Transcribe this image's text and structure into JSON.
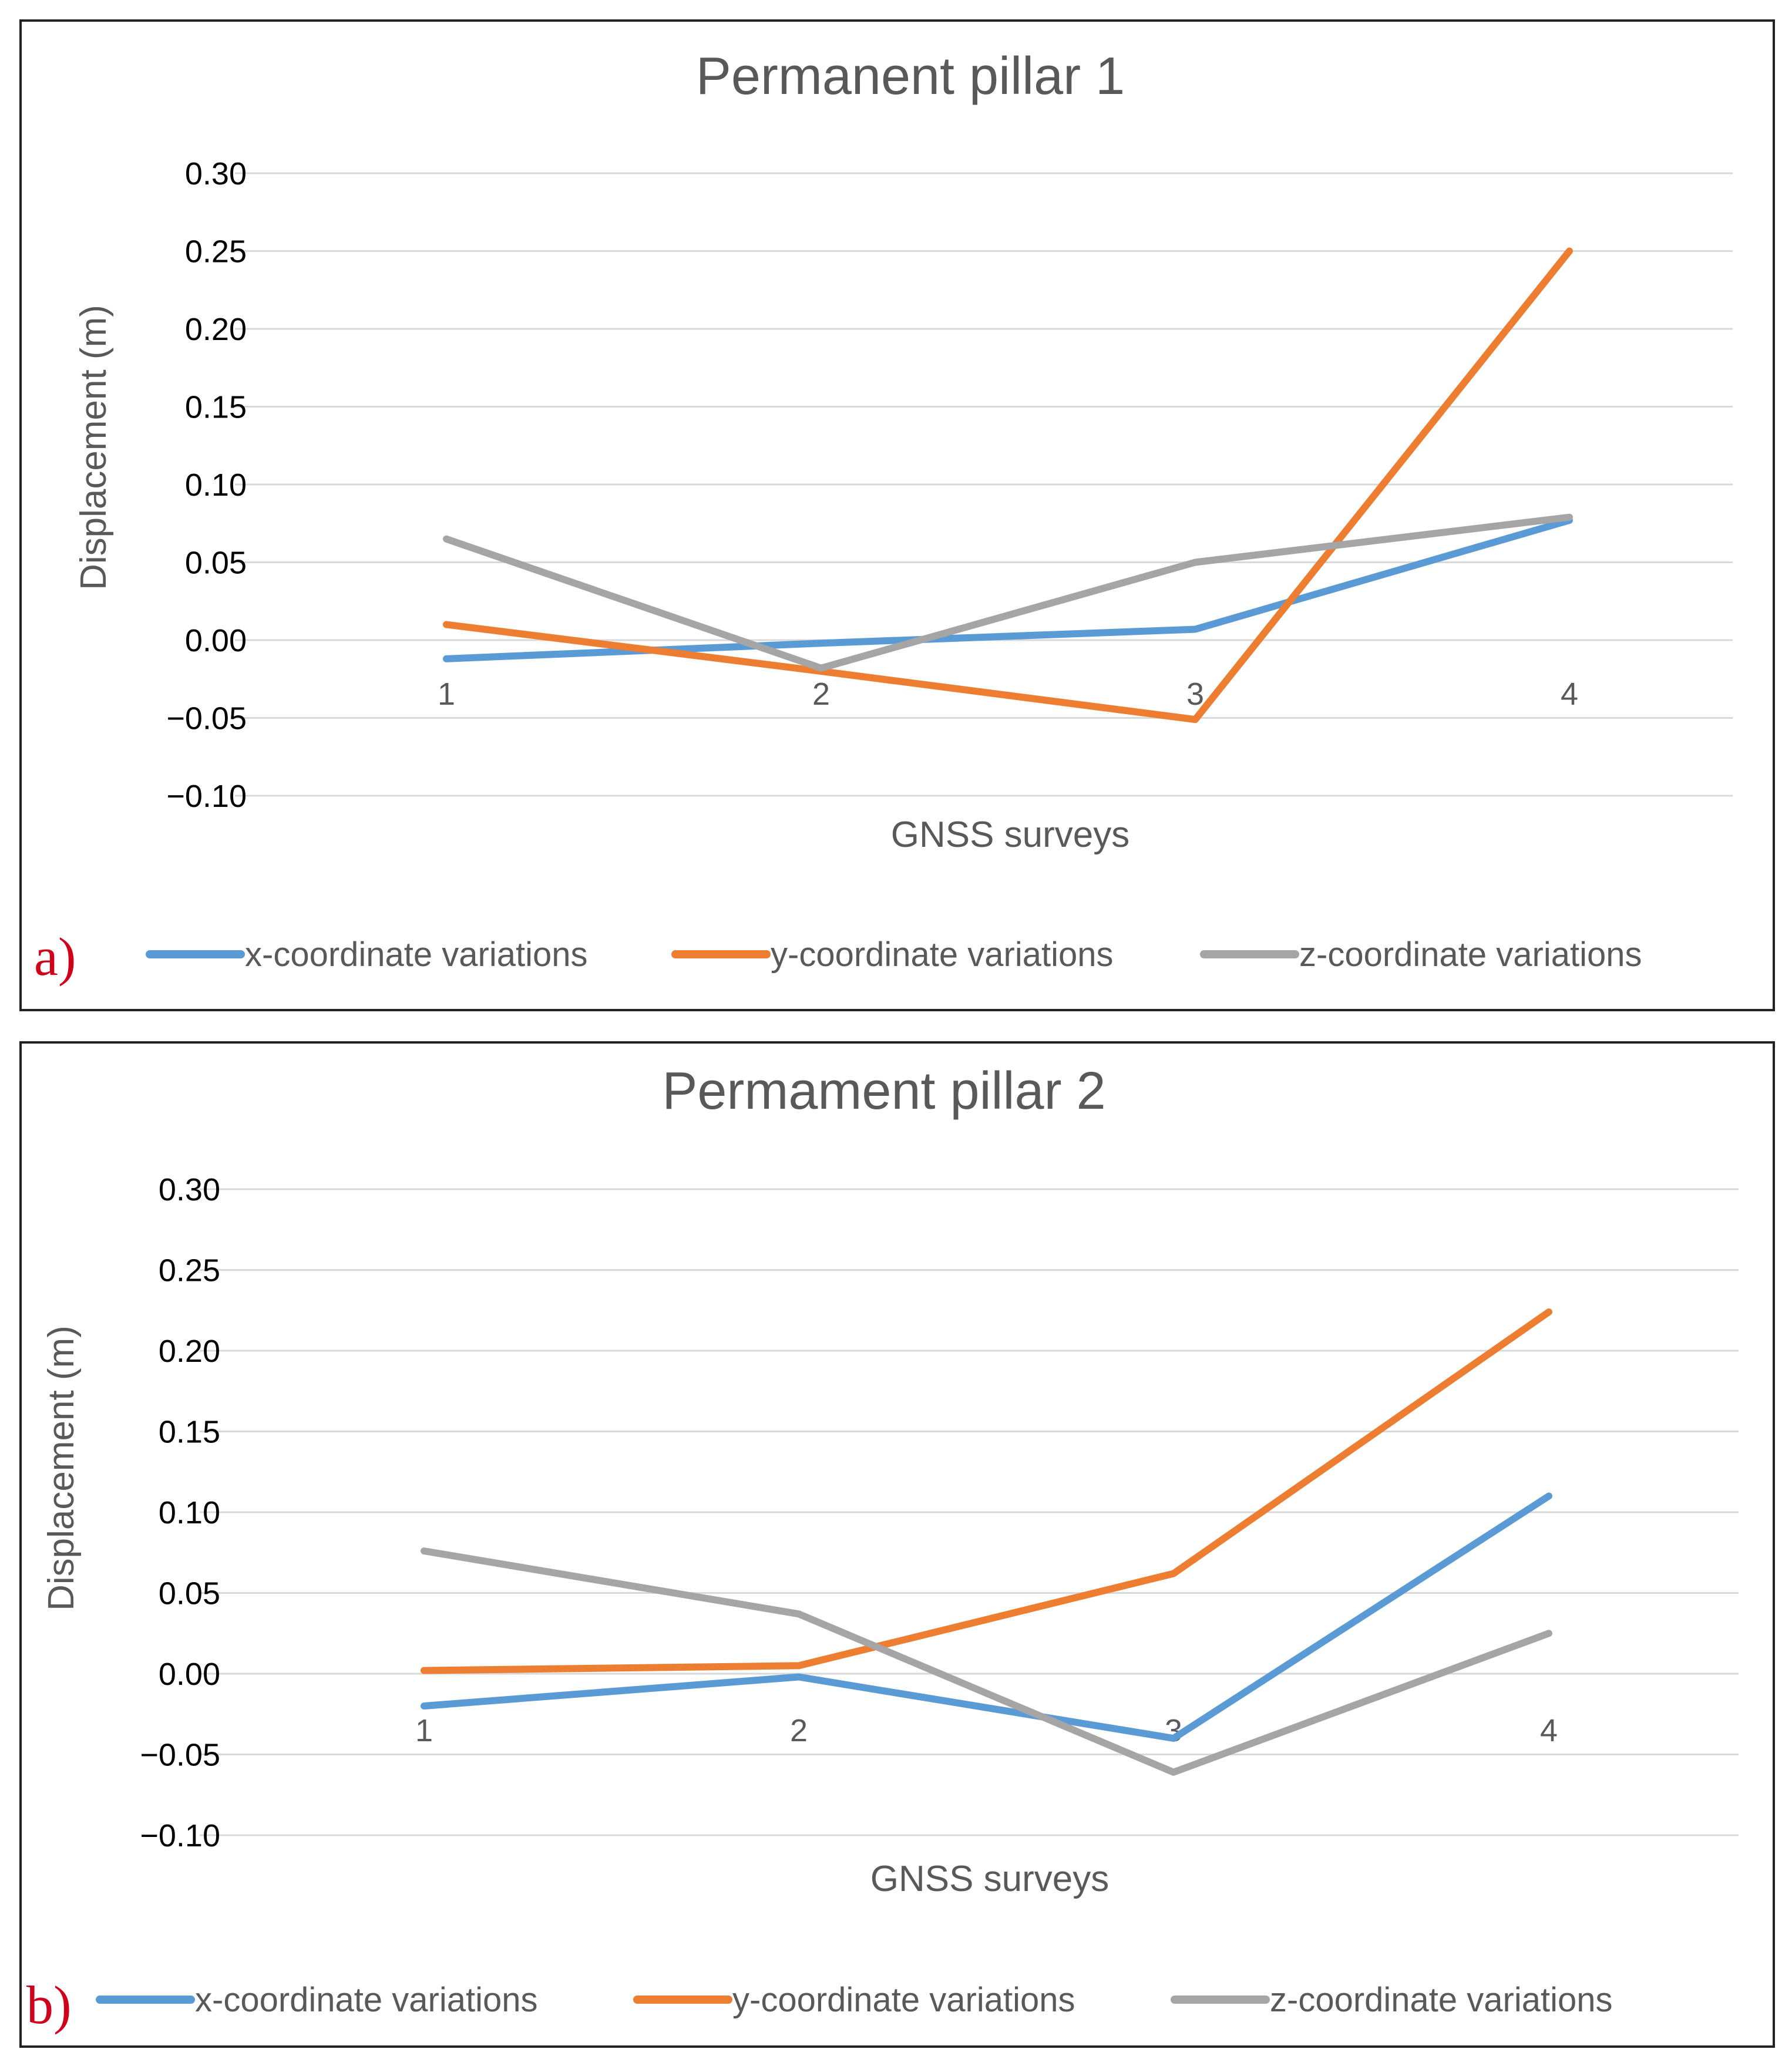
{
  "chart_data": [
    {
      "type": "line",
      "panel_label": "a)",
      "title": "Permanent pillar 1",
      "xlabel": "GNSS surveys",
      "ylabel": "Displacement (m)",
      "categories": [
        "1",
        "2",
        "3",
        "4"
      ],
      "ylim": [
        -0.1,
        0.3
      ],
      "yticks": [
        0.3,
        0.25,
        0.2,
        0.15,
        0.1,
        0.05,
        0.0,
        -0.05,
        -0.1
      ],
      "ytick_labels": [
        "0.30",
        "0.25",
        "0.20",
        "0.15",
        "0.10",
        "0.05",
        "0.00",
        "−0.05",
        "−0.10"
      ],
      "grid": true,
      "legend_position": "bottom",
      "series": [
        {
          "name": "x-coordinate variations",
          "color": "#5b9bd5",
          "values": [
            -0.012,
            -0.002,
            0.007,
            0.077
          ]
        },
        {
          "name": "y-coordinate variations",
          "color": "#ed7d31",
          "values": [
            0.01,
            -0.02,
            -0.051,
            0.25
          ]
        },
        {
          "name": "z-coordinate variations",
          "color": "#a5a5a5",
          "values": [
            0.065,
            -0.018,
            0.05,
            0.079
          ]
        }
      ]
    },
    {
      "type": "line",
      "panel_label": "b)",
      "title": "Permament pillar 2",
      "xlabel": "GNSS surveys",
      "ylabel": "Displacement (m)",
      "categories": [
        "1",
        "2",
        "3",
        "4"
      ],
      "ylim": [
        -0.1,
        0.3
      ],
      "yticks": [
        0.3,
        0.25,
        0.2,
        0.15,
        0.1,
        0.05,
        0.0,
        -0.05,
        -0.1
      ],
      "ytick_labels": [
        "0.30",
        "0.25",
        "0.20",
        "0.15",
        "0.10",
        "0.05",
        "0.00",
        "−0.05",
        "−0.10"
      ],
      "grid": true,
      "legend_position": "bottom",
      "series": [
        {
          "name": "x-coordinate variations",
          "color": "#5b9bd5",
          "values": [
            -0.02,
            -0.002,
            -0.04,
            0.11
          ]
        },
        {
          "name": "y-coordinate variations",
          "color": "#ed7d31",
          "values": [
            0.002,
            0.005,
            0.062,
            0.224
          ]
        },
        {
          "name": "z-coordinate variations",
          "color": "#a5a5a5",
          "values": [
            0.076,
            0.037,
            -0.061,
            0.025
          ]
        }
      ]
    }
  ]
}
